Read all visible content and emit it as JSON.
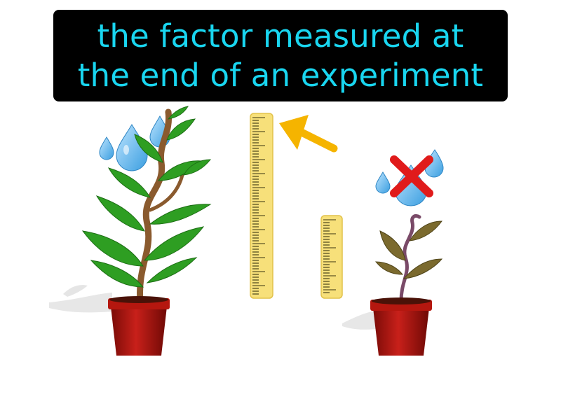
{
  "caption": {
    "line1": "the factor measured at",
    "line2": "the end of an experiment"
  },
  "colors": {
    "caption_background": "#000000",
    "caption_text": "#19d6f0",
    "leaf_healthy": "#2e9e22",
    "leaf_wilted": "#7b6a2e",
    "ruler": "#f7e07a",
    "pot": "#a8120c",
    "arrow": "#f5b400",
    "cross": "#e01b1b",
    "water_drop": "#5ab4ec"
  },
  "illustration": {
    "left_plant": "watered-plant-tall",
    "right_plant": "unwatered-plant-short",
    "tall_ruler": "ruler-tall",
    "short_ruler": "ruler-short",
    "arrow": "arrow-pointing-to-tall-ruler",
    "no_water": "crossed-out-water-drops"
  }
}
